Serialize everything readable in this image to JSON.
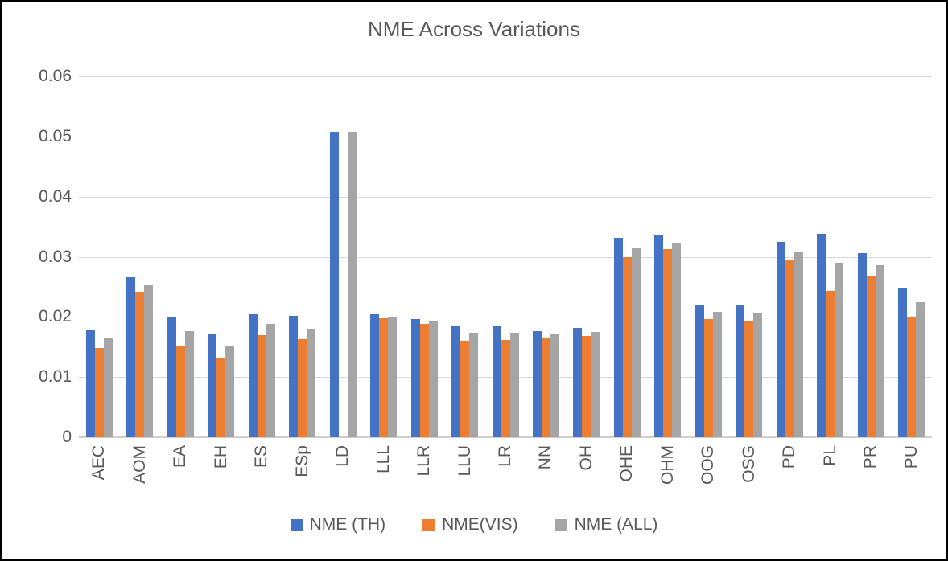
{
  "chart_data": {
    "type": "bar",
    "title": "NME Across Variations",
    "categories": [
      "AEC",
      "AOM",
      "EA",
      "EH",
      "ES",
      "ESp",
      "LD",
      "LLL",
      "LLR",
      "LLU",
      "LR",
      "NN",
      "OH",
      "OHE",
      "OHM",
      "OOG",
      "OSG",
      "PD",
      "PL",
      "PR",
      "PU"
    ],
    "series": [
      {
        "name": "NME (TH)",
        "color": "#4472C4",
        "values": [
          0.0178,
          0.0266,
          0.0199,
          0.0172,
          0.0205,
          0.0202,
          0.0508,
          0.0205,
          0.0196,
          0.0186,
          0.0184,
          0.0176,
          0.0182,
          0.0331,
          0.0335,
          0.0221,
          0.022,
          0.0325,
          0.0338,
          0.0306,
          0.0248
        ]
      },
      {
        "name": "NME(VIS)",
        "color": "#ED7D31",
        "values": [
          0.0148,
          0.0242,
          0.0152,
          0.0131,
          0.017,
          0.0163,
          null,
          0.0198,
          0.0189,
          0.0161,
          0.0162,
          0.0166,
          0.0168,
          0.03,
          0.0313,
          0.0196,
          0.0193,
          0.0294,
          0.0243,
          0.0268,
          0.0201
        ]
      },
      {
        "name": "NME (ALL)",
        "color": "#A5A5A5",
        "values": [
          0.0164,
          0.0254,
          0.0176,
          0.0152,
          0.0188,
          0.0181,
          0.0508,
          0.0201,
          0.0193,
          0.0174,
          0.0174,
          0.0171,
          0.0175,
          0.0316,
          0.0324,
          0.0208,
          0.0207,
          0.0309,
          0.029,
          0.0286,
          0.0225
        ]
      }
    ],
    "ylim": [
      0,
      0.06
    ],
    "y_ticks": [
      "0",
      "0.01",
      "0.02",
      "0.03",
      "0.04",
      "0.05",
      "0.06"
    ],
    "grid": "horizontal",
    "legend_position": "bottom"
  },
  "colors": {
    "gridline": "#D9D9D9",
    "axis_baseline": "#CFCFCF",
    "text": "#595959",
    "background": "#FFFFFF",
    "border": "#000000"
  }
}
